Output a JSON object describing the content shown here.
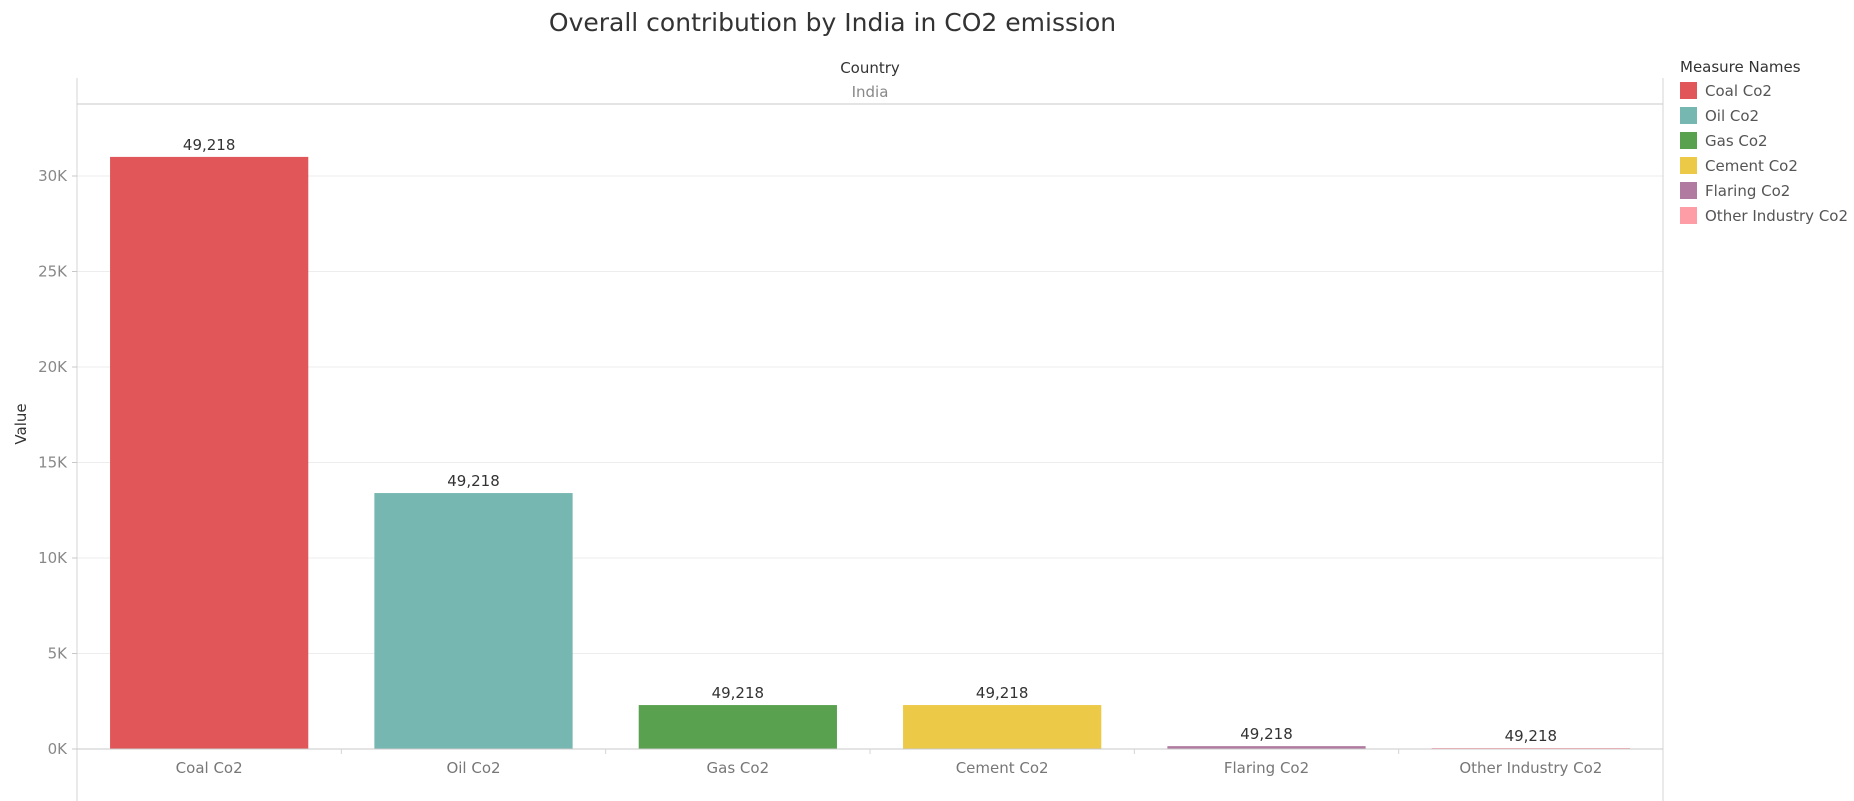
{
  "chart_data": {
    "type": "bar",
    "title": "Overall contribution by India in CO2 emission",
    "column_header": {
      "field": "Country",
      "value": "India"
    },
    "ylabel": "Value",
    "xlabel": "",
    "categories": [
      "Coal Co2",
      "Oil Co2",
      "Gas Co2",
      "Cement Co2",
      "Flaring Co2",
      "Other Industry Co2"
    ],
    "values": [
      31000,
      13400,
      2300,
      2300,
      150,
      20
    ],
    "data_labels": [
      "49,218",
      "49,218",
      "49,218",
      "49,218",
      "49,218",
      "49,218"
    ],
    "colors": [
      "#e15759",
      "#76b7b2",
      "#59a14f",
      "#edc948",
      "#b07aa1",
      "#ff9da7"
    ],
    "ylim": [
      0,
      34000
    ],
    "yticks": [
      0,
      5000,
      10000,
      15000,
      20000,
      25000,
      30000
    ],
    "ytick_labels": [
      "0K",
      "5K",
      "10K",
      "15K",
      "20K",
      "25K",
      "30K"
    ],
    "grid": true,
    "legend": {
      "title": "Measure Names",
      "placement": "right",
      "items": [
        {
          "label": "Coal Co2",
          "color": "#e15759"
        },
        {
          "label": "Oil Co2",
          "color": "#76b7b2"
        },
        {
          "label": "Gas Co2",
          "color": "#59a14f"
        },
        {
          "label": "Cement Co2",
          "color": "#edc948"
        },
        {
          "label": "Flaring Co2",
          "color": "#b07aa1"
        },
        {
          "label": "Other Industry Co2",
          "color": "#ff9da7"
        }
      ]
    }
  }
}
